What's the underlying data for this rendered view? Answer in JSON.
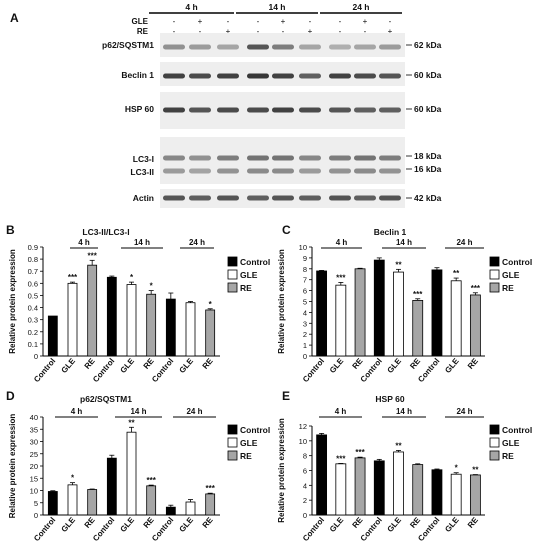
{
  "panel_a": {
    "letter": "A",
    "times": [
      "4 h",
      "14 h",
      "24 h"
    ],
    "row_labels": [
      "GLE",
      "RE"
    ],
    "gle_signs": [
      "-",
      "+",
      "-",
      "-",
      "+",
      "-",
      "-",
      "+",
      "-"
    ],
    "re_signs": [
      "-",
      "-",
      "+",
      "-",
      "-",
      "+",
      "-",
      "-",
      "+"
    ],
    "blots": [
      {
        "label": "p62/SQSTM1",
        "kda": [
          "62 kDa"
        ]
      },
      {
        "label": "Beclin 1",
        "kda": [
          "60 kDa"
        ]
      },
      {
        "label": "HSP 60",
        "kda": [
          "60 kDa"
        ]
      },
      {
        "label": "LC3-I",
        "label2": "LC3-II",
        "kda": [
          "18 kDa",
          "16 kDa"
        ]
      },
      {
        "label": "Actin",
        "kda": [
          "42 kDa"
        ]
      }
    ]
  },
  "legend": [
    "Control",
    "GLE",
    "RE"
  ],
  "colors": {
    "Control": "#000000",
    "GLE": "#ffffff",
    "RE": "#a6a6a6"
  },
  "chart_data": [
    {
      "letter": "B",
      "type": "bar",
      "title": "LC3-II/LC3-I",
      "ylabel": "Relative protein expression",
      "ylim": [
        0,
        0.9
      ],
      "yticks": [
        "0",
        "0.1",
        "0.2",
        "0.3",
        "0.4",
        "0.5",
        "0.6",
        "0.7",
        "0.8",
        "0.9"
      ],
      "groups": [
        "4 h",
        "14 h",
        "24 h"
      ],
      "categories": [
        "Control",
        "GLE",
        "RE",
        "Control",
        "GLE",
        "RE",
        "Control",
        "GLE",
        "RE"
      ],
      "values": [
        0.33,
        0.6,
        0.75,
        0.65,
        0.59,
        0.51,
        0.47,
        0.44,
        0.38
      ],
      "errors": [
        0.0,
        0.01,
        0.04,
        0.01,
        0.02,
        0.03,
        0.05,
        0.01,
        0.01
      ],
      "stars": [
        "",
        "***",
        "***",
        "",
        "*",
        "*",
        "",
        "",
        "*"
      ],
      "legend_position": "right"
    },
    {
      "letter": "C",
      "type": "bar",
      "title": "Beclin 1",
      "ylabel": "Relative protein expression",
      "ylim": [
        0,
        10
      ],
      "yticks": [
        "0",
        "1",
        "2",
        "3",
        "4",
        "5",
        "6",
        "7",
        "8",
        "9",
        "10"
      ],
      "groups": [
        "4 h",
        "14 h",
        "24 h"
      ],
      "categories": [
        "Control",
        "GLE",
        "RE",
        "Control",
        "GLE",
        "RE",
        "Control",
        "GLE",
        "RE"
      ],
      "values": [
        7.8,
        6.5,
        8.0,
        8.8,
        7.7,
        5.1,
        7.9,
        6.9,
        5.6
      ],
      "errors": [
        0.05,
        0.25,
        0.05,
        0.2,
        0.25,
        0.15,
        0.2,
        0.25,
        0.2
      ],
      "stars": [
        "",
        "***",
        "",
        "",
        "**",
        "***",
        "",
        "**",
        "***"
      ],
      "legend_position": "right"
    },
    {
      "letter": "D",
      "type": "bar",
      "title": "p62/SQSTM1",
      "ylabel": "Relative protein expression",
      "ylim": [
        0,
        40
      ],
      "yticks": [
        "0",
        "5",
        "10",
        "15",
        "20",
        "25",
        "30",
        "35",
        "40"
      ],
      "groups": [
        "4 h",
        "14 h",
        "24 h"
      ],
      "categories": [
        "Control",
        "GLE",
        "RE",
        "Control",
        "GLE",
        "RE",
        "Control",
        "GLE",
        "RE"
      ],
      "values": [
        9.6,
        12.3,
        10.4,
        23.2,
        33.8,
        11.9,
        3.2,
        5.3,
        8.6
      ],
      "errors": [
        0.3,
        0.9,
        0.2,
        1.2,
        2.0,
        0.3,
        0.8,
        1.0,
        0.3
      ],
      "stars": [
        "",
        "*",
        "",
        "",
        "**",
        "***",
        "",
        "",
        "***"
      ],
      "legend_position": "right"
    },
    {
      "letter": "E",
      "type": "bar",
      "title": "HSP 60",
      "ylabel": "Relative protein expression",
      "ylim": [
        0,
        12
      ],
      "yticks": [
        "0",
        "2",
        "4",
        "6",
        "8",
        "10",
        "12"
      ],
      "groups": [
        "4 h",
        "14 h",
        "24 h"
      ],
      "categories": [
        "Control",
        "GLE",
        "RE",
        "Control",
        "GLE",
        "RE",
        "Control",
        "GLE",
        "RE"
      ],
      "values": [
        10.8,
        6.9,
        7.7,
        7.3,
        8.5,
        6.8,
        6.1,
        5.5,
        5.4
      ],
      "errors": [
        0.2,
        0.05,
        0.1,
        0.2,
        0.2,
        0.1,
        0.1,
        0.2,
        0.05
      ],
      "stars": [
        "",
        "***",
        "***",
        "",
        "**",
        "",
        "",
        "*",
        "**"
      ],
      "legend_position": "right"
    }
  ]
}
